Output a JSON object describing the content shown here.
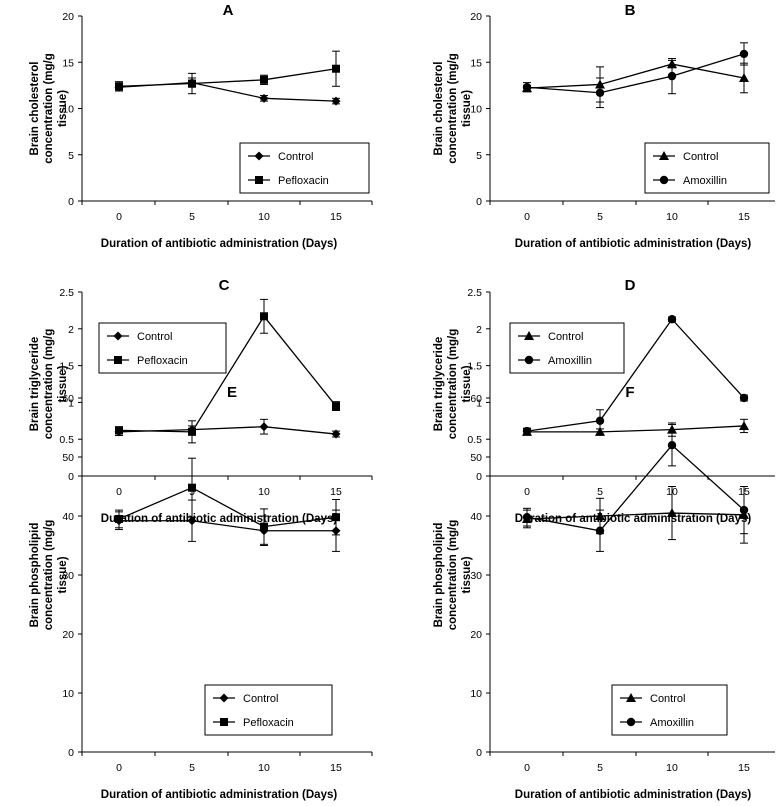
{
  "chart_data": [
    {
      "type": "line",
      "panel": "A",
      "x": [
        0,
        5,
        10,
        15
      ],
      "xlabel": "Duration of antibiotic administration (Days)",
      "ylabel": [
        "Brain cholesterol",
        "concentration (mg/g",
        "tissue)"
      ],
      "ylim": [
        0,
        20
      ],
      "yticks": [
        0,
        5,
        10,
        15,
        20
      ],
      "series": [
        {
          "name": "Control",
          "marker": "diamond",
          "values": [
            12.3,
            12.8,
            11.1,
            10.8
          ],
          "errors": [
            0.4,
            0.5,
            0.3,
            0.3
          ]
        },
        {
          "name": "Pefloxacin",
          "marker": "square",
          "values": [
            12.4,
            12.7,
            13.1,
            14.3
          ],
          "errors": [
            0.5,
            1.1,
            0.5,
            1.9
          ]
        }
      ],
      "legend_position": "bottom-center"
    },
    {
      "type": "line",
      "panel": "B",
      "x": [
        0,
        5,
        10,
        15
      ],
      "xlabel": "Duration of antibiotic administration (Days)",
      "ylabel": [
        "Brain cholesterol",
        "concentration (mg/g",
        "tissue)"
      ],
      "ylim": [
        0,
        20
      ],
      "yticks": [
        0,
        5,
        10,
        15,
        20
      ],
      "series": [
        {
          "name": "Control",
          "marker": "triangle",
          "values": [
            12.2,
            12.6,
            14.8,
            13.3
          ],
          "errors": [
            0.3,
            1.9,
            0.4,
            1.6
          ]
        },
        {
          "name": "Amoxillin",
          "marker": "circle",
          "values": [
            12.3,
            11.7,
            13.5,
            15.9
          ],
          "errors": [
            0.5,
            1.6,
            1.9,
            1.2
          ]
        }
      ],
      "legend_position": "bottom-center"
    },
    {
      "type": "line",
      "panel": "C",
      "x": [
        0,
        5,
        10,
        15
      ],
      "xlabel": "Duration of antibiotic administration (Days)",
      "ylabel": [
        "Brain triglyceride",
        "concentration (mg/g",
        "tissue)"
      ],
      "ylim": [
        0,
        2.5
      ],
      "yticks": [
        0,
        0.5,
        1,
        1.5,
        2,
        2.5
      ],
      "series": [
        {
          "name": "Control",
          "marker": "diamond",
          "values": [
            0.6,
            0.63,
            0.67,
            0.57
          ],
          "errors": [
            0.05,
            0.05,
            0.1,
            0.04
          ]
        },
        {
          "name": "Pefloxacin",
          "marker": "square",
          "values": [
            0.62,
            0.6,
            2.17,
            0.95
          ],
          "errors": [
            0.05,
            0.15,
            0.23,
            0.06
          ]
        }
      ],
      "legend_position": "top-left"
    },
    {
      "type": "line",
      "panel": "D",
      "x": [
        0,
        5,
        10,
        15
      ],
      "xlabel": "Duration of antibiotic administration (Days)",
      "ylabel": [
        "Brain triglyceride",
        "concentration (mg/g",
        "tissue)"
      ],
      "ylim": [
        0,
        2.5
      ],
      "yticks": [
        0,
        0.5,
        1,
        1.5,
        2,
        2.5
      ],
      "series": [
        {
          "name": "Control",
          "marker": "triangle",
          "values": [
            0.6,
            0.6,
            0.63,
            0.68
          ],
          "errors": [
            0.04,
            0.04,
            0.09,
            0.09
          ]
        },
        {
          "name": "Amoxillin",
          "marker": "circle",
          "values": [
            0.61,
            0.75,
            2.13,
            1.06
          ],
          "errors": [
            0.04,
            0.15,
            0.03,
            0.04
          ]
        }
      ],
      "legend_position": "top-left"
    },
    {
      "type": "line",
      "panel": "E",
      "x": [
        0,
        5,
        10,
        15
      ],
      "xlabel": "Duration of antibiotic administration (Days)",
      "ylabel": [
        "Brain phospholipid",
        "concentration (mg/g",
        "tissue)"
      ],
      "ylim": [
        0,
        60
      ],
      "yticks": [
        0,
        10,
        20,
        30,
        40,
        50,
        60
      ],
      "series": [
        {
          "name": "Control",
          "marker": "diamond",
          "values": [
            39.2,
            39.2,
            37.5,
            37.5
          ],
          "errors": [
            1.5,
            3.5,
            2.5,
            3.5
          ]
        },
        {
          "name": "Pefloxacin",
          "marker": "square",
          "values": [
            39.5,
            44.8,
            38.2,
            39.8
          ],
          "errors": [
            1.5,
            5.0,
            3.0,
            3.0
          ]
        }
      ],
      "legend_position": "bottom-center"
    },
    {
      "type": "line",
      "panel": "F",
      "x": [
        0,
        5,
        10,
        15
      ],
      "xlabel": "Duration of antibiotic administration (Days)",
      "ylabel": [
        "Brain phospholipid",
        "concentration (mg/g",
        "tissue)"
      ],
      "ylim": [
        0,
        60
      ],
      "yticks": [
        0,
        10,
        20,
        30,
        40,
        50,
        60
      ],
      "series": [
        {
          "name": "Control",
          "marker": "triangle",
          "values": [
            39.5,
            40.0,
            40.5,
            40.2
          ],
          "errors": [
            1.5,
            3.0,
            4.5,
            4.8
          ]
        },
        {
          "name": "Amoxillin",
          "marker": "circle",
          "values": [
            39.8,
            37.5,
            52.0,
            41.0
          ],
          "errors": [
            1.5,
            3.5,
            3.5,
            4.0
          ]
        }
      ],
      "legend_position": "bottom-center"
    }
  ]
}
